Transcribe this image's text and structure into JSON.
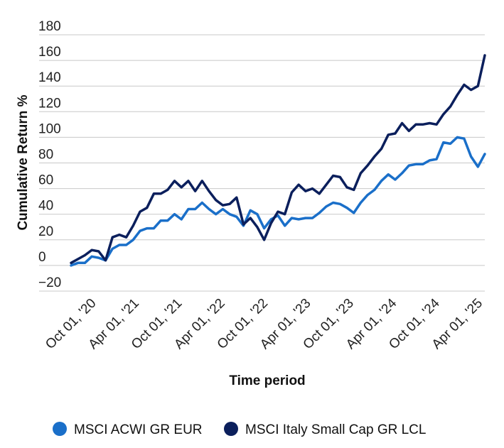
{
  "chart_data": {
    "type": "line",
    "xlabel": "Time period",
    "ylabel": "Cumulative Return %",
    "ylim": [
      -20,
      180
    ],
    "yticks": [
      "180",
      "160",
      "140",
      "120",
      "100",
      "80",
      "60",
      "40",
      "20",
      "0",
      "−20"
    ],
    "ytick_values": [
      180,
      160,
      140,
      120,
      100,
      80,
      60,
      40,
      20,
      0,
      -20
    ],
    "xticks": [
      "Oct 01, '20",
      "Apr 01, '21",
      "Oct 01, '21",
      "Apr 01, '22",
      "Oct 01, '22",
      "Apr 01, '23",
      "Oct 01, '23",
      "Apr 01, '24",
      "Oct 01, '24",
      "Apr 01, '25"
    ],
    "grid": "horizontal",
    "legend_position": "bottom",
    "series": [
      {
        "name": "MSCI ACWI GR EUR",
        "color": "#1a6fc9",
        "values": [
          0,
          2,
          2,
          7,
          6,
          4,
          13,
          16,
          16,
          20,
          27,
          29,
          29,
          35,
          35,
          40,
          36,
          44,
          44,
          49,
          44,
          40,
          44,
          40,
          38,
          31,
          43,
          40,
          29,
          36,
          39,
          31,
          37,
          36,
          37,
          37,
          41,
          46,
          49,
          48,
          45,
          41,
          49,
          55,
          59,
          66,
          71,
          67,
          72,
          78,
          79,
          79,
          82,
          83,
          96,
          95,
          100,
          99,
          85,
          77,
          87
        ]
      },
      {
        "name": "MSCI Italy Small Cap GR LCL",
        "color": "#0b1f5c",
        "values": [
          2,
          5,
          8,
          12,
          11,
          4,
          22,
          24,
          22,
          31,
          42,
          45,
          56,
          56,
          59,
          66,
          61,
          66,
          58,
          66,
          58,
          51,
          47,
          48,
          53,
          32,
          37,
          30,
          20,
          33,
          42,
          40,
          57,
          63,
          58,
          60,
          56,
          63,
          70,
          69,
          61,
          59,
          72,
          78,
          85,
          91,
          102,
          103,
          111,
          105,
          110,
          110,
          111,
          110,
          118,
          124,
          133,
          141,
          137,
          140,
          164
        ]
      }
    ]
  }
}
